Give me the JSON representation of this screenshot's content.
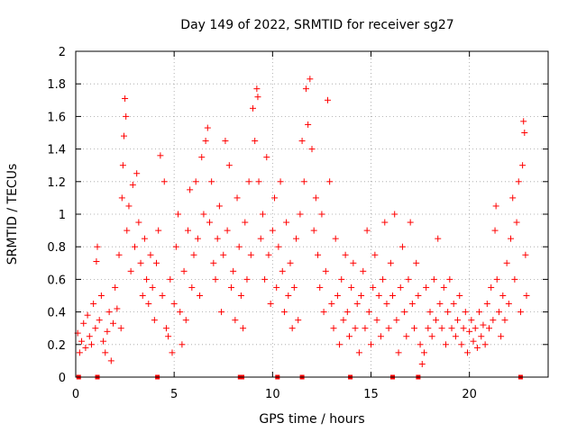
{
  "chart_data": {
    "type": "scatter",
    "title": "Day 149 of 2022, SRMTID for receiver sg27",
    "xlabel": "GPS time / hours",
    "ylabel": "SRMTID / TECUs",
    "xlim": [
      0,
      24
    ],
    "ylim": [
      0,
      2
    ],
    "xticks": [
      0,
      5,
      10,
      15,
      20
    ],
    "xtick_labels": [
      "0",
      "5",
      "10",
      "15",
      "20"
    ],
    "yticks": [
      0,
      0.2,
      0.4,
      0.6,
      0.8,
      1.0,
      1.2,
      1.4,
      1.6,
      1.8,
      2.0
    ],
    "ytick_labels": [
      "0",
      "0.2",
      "0.4",
      "0.6",
      "0.8",
      "1",
      "1.2",
      "1.4",
      "1.6",
      "1.8",
      "2"
    ],
    "grid": true,
    "marker": "+",
    "color": "#ff0000",
    "series": [
      {
        "name": "SRMTID",
        "points": [
          [
            0.1,
            0.27
          ],
          [
            0.2,
            0.15
          ],
          [
            0.3,
            0.22
          ],
          [
            0.4,
            0.33
          ],
          [
            0.5,
            0.18
          ],
          [
            0.6,
            0.38
          ],
          [
            0.7,
            0.25
          ],
          [
            0.8,
            0.2
          ],
          [
            0.9,
            0.45
          ],
          [
            1.0,
            0.3
          ],
          [
            1.05,
            0.71
          ],
          [
            1.1,
            0.8
          ],
          [
            1.2,
            0.35
          ],
          [
            1.3,
            0.5
          ],
          [
            1.4,
            0.22
          ],
          [
            1.5,
            0.15
          ],
          [
            1.6,
            0.28
          ],
          [
            1.7,
            0.4
          ],
          [
            1.8,
            0.1
          ],
          [
            1.9,
            0.33
          ],
          [
            2.0,
            0.55
          ],
          [
            2.1,
            0.42
          ],
          [
            2.2,
            0.75
          ],
          [
            2.3,
            0.3
          ],
          [
            2.35,
            1.1
          ],
          [
            2.4,
            1.3
          ],
          [
            2.45,
            1.48
          ],
          [
            2.5,
            1.71
          ],
          [
            2.55,
            1.6
          ],
          [
            2.6,
            0.9
          ],
          [
            2.7,
            1.05
          ],
          [
            2.8,
            0.65
          ],
          [
            2.9,
            1.18
          ],
          [
            3.0,
            0.8
          ],
          [
            3.1,
            1.25
          ],
          [
            3.2,
            0.95
          ],
          [
            3.3,
            0.7
          ],
          [
            3.4,
            0.5
          ],
          [
            3.5,
            0.85
          ],
          [
            3.6,
            0.6
          ],
          [
            3.7,
            0.45
          ],
          [
            3.8,
            0.75
          ],
          [
            3.9,
            0.55
          ],
          [
            4.0,
            0.35
          ],
          [
            4.1,
            0.7
          ],
          [
            4.2,
            0.9
          ],
          [
            4.3,
            1.36
          ],
          [
            4.4,
            0.5
          ],
          [
            4.5,
            1.2
          ],
          [
            4.6,
            0.3
          ],
          [
            4.7,
            0.25
          ],
          [
            4.8,
            0.6
          ],
          [
            4.9,
            0.15
          ],
          [
            5.0,
            0.45
          ],
          [
            5.1,
            0.8
          ],
          [
            5.2,
            1.0
          ],
          [
            5.3,
            0.4
          ],
          [
            5.4,
            0.2
          ],
          [
            5.5,
            0.65
          ],
          [
            5.6,
            0.35
          ],
          [
            5.7,
            0.9
          ],
          [
            5.8,
            1.15
          ],
          [
            5.9,
            0.55
          ],
          [
            6.0,
            0.75
          ],
          [
            6.1,
            1.2
          ],
          [
            6.2,
            0.85
          ],
          [
            6.3,
            0.5
          ],
          [
            6.4,
            1.35
          ],
          [
            6.5,
            1.0
          ],
          [
            6.6,
            1.45
          ],
          [
            6.7,
            1.53
          ],
          [
            6.8,
            0.95
          ],
          [
            6.9,
            1.2
          ],
          [
            7.0,
            0.7
          ],
          [
            7.1,
            0.6
          ],
          [
            7.2,
            0.85
          ],
          [
            7.3,
            1.05
          ],
          [
            7.4,
            0.4
          ],
          [
            7.5,
            0.75
          ],
          [
            7.6,
            1.45
          ],
          [
            7.7,
            0.9
          ],
          [
            7.8,
            1.3
          ],
          [
            7.9,
            0.55
          ],
          [
            8.0,
            0.65
          ],
          [
            8.1,
            0.35
          ],
          [
            8.2,
            1.1
          ],
          [
            8.3,
            0.8
          ],
          [
            8.4,
            0.5
          ],
          [
            8.5,
            0.3
          ],
          [
            8.6,
            0.95
          ],
          [
            8.7,
            0.6
          ],
          [
            8.8,
            1.2
          ],
          [
            8.9,
            0.75
          ],
          [
            9.0,
            1.65
          ],
          [
            9.1,
            1.45
          ],
          [
            9.2,
            1.77
          ],
          [
            9.25,
            1.72
          ],
          [
            9.3,
            1.2
          ],
          [
            9.4,
            0.85
          ],
          [
            9.5,
            1.0
          ],
          [
            9.6,
            0.6
          ],
          [
            9.7,
            1.35
          ],
          [
            9.8,
            0.75
          ],
          [
            9.9,
            0.45
          ],
          [
            10.0,
            0.9
          ],
          [
            10.1,
            1.1
          ],
          [
            10.2,
            0.55
          ],
          [
            10.3,
            0.8
          ],
          [
            10.4,
            1.2
          ],
          [
            10.5,
            0.65
          ],
          [
            10.6,
            0.4
          ],
          [
            10.7,
            0.95
          ],
          [
            10.8,
            0.5
          ],
          [
            10.9,
            0.7
          ],
          [
            11.0,
            0.3
          ],
          [
            11.1,
            0.55
          ],
          [
            11.2,
            0.85
          ],
          [
            11.3,
            0.35
          ],
          [
            11.4,
            1.0
          ],
          [
            11.5,
            1.45
          ],
          [
            11.6,
            1.2
          ],
          [
            11.7,
            1.77
          ],
          [
            11.8,
            1.55
          ],
          [
            11.9,
            1.83
          ],
          [
            12.0,
            1.4
          ],
          [
            12.1,
            0.9
          ],
          [
            12.2,
            1.1
          ],
          [
            12.3,
            0.75
          ],
          [
            12.4,
            0.55
          ],
          [
            12.5,
            1.0
          ],
          [
            12.6,
            0.4
          ],
          [
            12.7,
            0.65
          ],
          [
            12.8,
            1.7
          ],
          [
            12.9,
            1.2
          ],
          [
            13.0,
            0.45
          ],
          [
            13.1,
            0.3
          ],
          [
            13.2,
            0.85
          ],
          [
            13.3,
            0.5
          ],
          [
            13.4,
            0.2
          ],
          [
            13.5,
            0.6
          ],
          [
            13.6,
            0.35
          ],
          [
            13.7,
            0.75
          ],
          [
            13.8,
            0.4
          ],
          [
            13.9,
            0.25
          ],
          [
            14.0,
            0.55
          ],
          [
            14.1,
            0.7
          ],
          [
            14.2,
            0.3
          ],
          [
            14.3,
            0.45
          ],
          [
            14.4,
            0.15
          ],
          [
            14.5,
            0.5
          ],
          [
            14.6,
            0.65
          ],
          [
            14.7,
            0.3
          ],
          [
            14.8,
            0.9
          ],
          [
            14.9,
            0.4
          ],
          [
            15.0,
            0.2
          ],
          [
            15.1,
            0.55
          ],
          [
            15.2,
            0.75
          ],
          [
            15.3,
            0.35
          ],
          [
            15.4,
            0.5
          ],
          [
            15.5,
            0.25
          ],
          [
            15.6,
            0.6
          ],
          [
            15.7,
            0.95
          ],
          [
            15.8,
            0.45
          ],
          [
            15.9,
            0.3
          ],
          [
            16.0,
            0.7
          ],
          [
            16.1,
            0.5
          ],
          [
            16.2,
            1.0
          ],
          [
            16.3,
            0.35
          ],
          [
            16.4,
            0.15
          ],
          [
            16.5,
            0.55
          ],
          [
            16.6,
            0.8
          ],
          [
            16.7,
            0.4
          ],
          [
            16.8,
            0.25
          ],
          [
            16.9,
            0.6
          ],
          [
            17.0,
            0.95
          ],
          [
            17.1,
            0.45
          ],
          [
            17.2,
            0.3
          ],
          [
            17.3,
            0.7
          ],
          [
            17.4,
            0.5
          ],
          [
            17.5,
            0.2
          ],
          [
            17.6,
            0.08
          ],
          [
            17.7,
            0.15
          ],
          [
            17.8,
            0.55
          ],
          [
            17.9,
            0.3
          ],
          [
            18.0,
            0.4
          ],
          [
            18.1,
            0.25
          ],
          [
            18.2,
            0.6
          ],
          [
            18.3,
            0.35
          ],
          [
            18.4,
            0.85
          ],
          [
            18.5,
            0.45
          ],
          [
            18.6,
            0.3
          ],
          [
            18.7,
            0.55
          ],
          [
            18.8,
            0.2
          ],
          [
            18.9,
            0.4
          ],
          [
            19.0,
            0.6
          ],
          [
            19.1,
            0.3
          ],
          [
            19.2,
            0.45
          ],
          [
            19.3,
            0.25
          ],
          [
            19.4,
            0.35
          ],
          [
            19.5,
            0.5
          ],
          [
            19.6,
            0.2
          ],
          [
            19.7,
            0.3
          ],
          [
            19.8,
            0.4
          ],
          [
            19.9,
            0.15
          ],
          [
            20.0,
            0.28
          ],
          [
            20.1,
            0.35
          ],
          [
            20.2,
            0.22
          ],
          [
            20.3,
            0.3
          ],
          [
            20.4,
            0.18
          ],
          [
            20.5,
            0.4
          ],
          [
            20.6,
            0.25
          ],
          [
            20.7,
            0.32
          ],
          [
            20.8,
            0.2
          ],
          [
            20.9,
            0.45
          ],
          [
            21.0,
            0.3
          ],
          [
            21.1,
            0.55
          ],
          [
            21.2,
            0.35
          ],
          [
            21.3,
            0.9
          ],
          [
            21.35,
            1.05
          ],
          [
            21.4,
            0.6
          ],
          [
            21.5,
            0.4
          ],
          [
            21.6,
            0.25
          ],
          [
            21.7,
            0.5
          ],
          [
            21.8,
            0.35
          ],
          [
            21.9,
            0.7
          ],
          [
            22.0,
            0.45
          ],
          [
            22.1,
            0.85
          ],
          [
            22.2,
            1.1
          ],
          [
            22.3,
            0.6
          ],
          [
            22.4,
            0.95
          ],
          [
            22.5,
            1.2
          ],
          [
            22.6,
            0.4
          ],
          [
            22.7,
            1.3
          ],
          [
            22.75,
            1.57
          ],
          [
            22.8,
            1.5
          ],
          [
            22.85,
            0.75
          ],
          [
            22.9,
            0.5
          ]
        ]
      }
    ],
    "baseline_markers": [
      0.15,
      1.1,
      4.15,
      8.35,
      8.45,
      10.25,
      11.5,
      13.95,
      16.1,
      17.4,
      22.6
    ]
  }
}
